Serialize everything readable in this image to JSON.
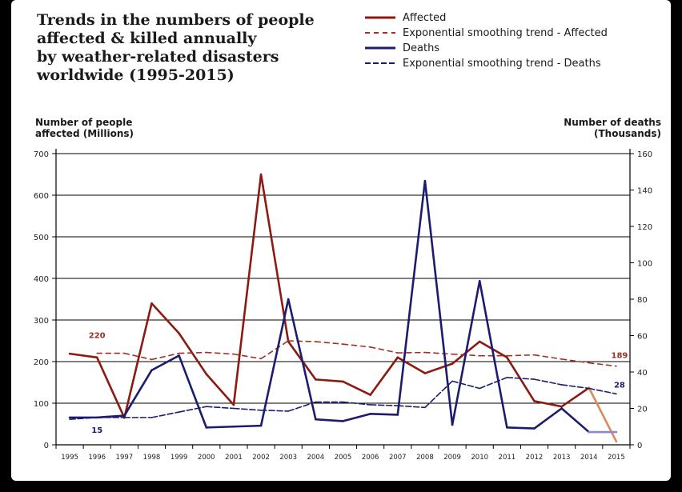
{
  "chart_data": {
    "type": "line",
    "title_lines": [
      "Trends in the numbers of people",
      "affected & killed annually",
      "by weather-related disasters",
      "worldwide (1995-2015)"
    ],
    "ylabel_left": [
      "Number of people",
      "affected (Millions)"
    ],
    "ylabel_right": [
      "Number of deaths",
      "(Thousands)"
    ],
    "ylim_left": [
      0,
      700
    ],
    "ylim_right": [
      0,
      160
    ],
    "yticks_left": [
      0,
      100,
      200,
      300,
      400,
      500,
      600,
      700
    ],
    "yticks_right": [
      0,
      20,
      40,
      60,
      80,
      100,
      120,
      140,
      160
    ],
    "x": [
      "1995",
      "1996",
      "1997",
      "1998",
      "1999",
      "2000",
      "2001",
      "2002",
      "2003",
      "2004",
      "2005",
      "2006",
      "2007",
      "2008",
      "2009",
      "2010",
      "2011",
      "2012",
      "2013",
      "2014",
      "2015"
    ],
    "series": [
      {
        "name": "Affected",
        "axis": "left",
        "color": "#8b1a12",
        "style": "solid",
        "values": [
          219,
          210,
          65,
          340,
          268,
          170,
          96,
          650,
          248,
          157,
          152,
          120,
          210,
          172,
          195,
          248,
          210,
          105,
          92,
          137,
          8
        ]
      },
      {
        "name": "Exponential smoothing trend - Affected",
        "axis": "left",
        "color": "#a03020",
        "style": "dashed",
        "values": [
          null,
          220,
          220,
          205,
          220,
          222,
          218,
          207,
          250,
          248,
          242,
          235,
          221,
          222,
          218,
          214,
          214,
          216,
          206,
          197,
          189
        ]
      },
      {
        "name": "Deaths",
        "axis": "right",
        "color": "#1c1c6e",
        "style": "solid",
        "values": [
          15,
          15,
          16,
          41,
          49,
          9.5,
          10,
          10.5,
          80,
          14,
          13,
          17,
          16.5,
          145,
          11,
          90,
          9.5,
          9,
          20,
          7,
          7
        ]
      },
      {
        "name": "Exponential smoothing trend - Deaths",
        "axis": "right",
        "color": "#1c1c6e",
        "style": "dashed",
        "values": [
          14,
          15,
          15,
          15,
          18,
          21,
          20,
          19,
          18.5,
          23.5,
          23.5,
          22,
          21.5,
          20.5,
          35,
          31,
          37,
          36,
          33,
          31,
          28
        ]
      }
    ],
    "annotations": {
      "affected_start": "220",
      "affected_end": "189",
      "deaths_start": "15",
      "deaths_end": "28"
    },
    "legend_position": "top-right",
    "grid": "horizontal"
  }
}
